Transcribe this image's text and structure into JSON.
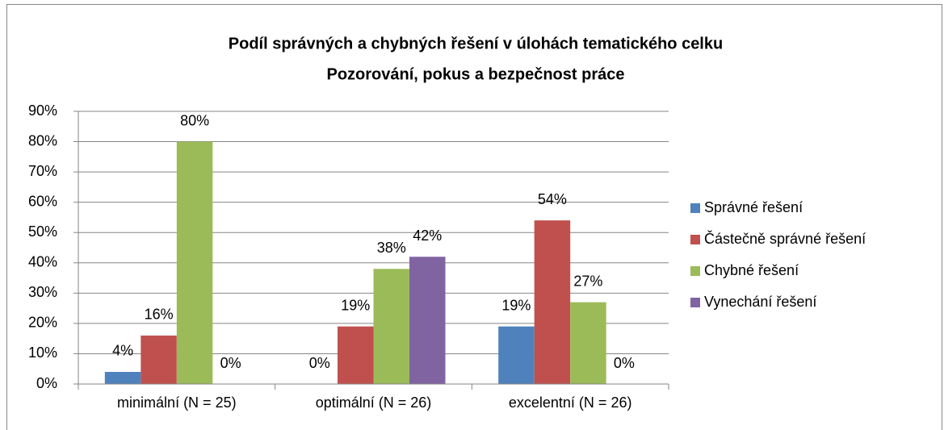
{
  "chart_data": {
    "type": "bar",
    "title": [
      "Podíl správných a chybných řešení v úlohách tematického celku",
      "Pozorování, pokus a bezpečnost práce"
    ],
    "categories": [
      "minimální (N = 25)",
      "optimální (N = 26)",
      "excelentní (N = 26)"
    ],
    "series": [
      {
        "name": "Správné řešení",
        "color": "#4f81bd",
        "values": [
          4,
          0,
          19
        ],
        "value_labels": [
          "4%",
          "0%",
          "19%"
        ]
      },
      {
        "name": "Částečně správné řešení",
        "color": "#c0504d",
        "values": [
          16,
          19,
          54
        ],
        "value_labels": [
          "16%",
          "19%",
          "54%"
        ]
      },
      {
        "name": "Chybné řešení",
        "color": "#9bbb59",
        "values": [
          80,
          38,
          27
        ],
        "value_labels": [
          "80%",
          "38%",
          "27%"
        ]
      },
      {
        "name": "Vynechání řešení",
        "color": "#8064a2",
        "values": [
          0,
          42,
          0
        ],
        "value_labels": [
          "0%",
          "42%",
          "0%"
        ]
      }
    ],
    "ylim": [
      0,
      90
    ],
    "yticks": [
      {
        "value": 0,
        "label": "0%"
      },
      {
        "value": 10,
        "label": "10%"
      },
      {
        "value": 20,
        "label": "20%"
      },
      {
        "value": 30,
        "label": "30%"
      },
      {
        "value": 40,
        "label": "40%"
      },
      {
        "value": 50,
        "label": "50%"
      },
      {
        "value": 60,
        "label": "60%"
      },
      {
        "value": 70,
        "label": "70%"
      },
      {
        "value": 80,
        "label": "80%"
      },
      {
        "value": 90,
        "label": "90%"
      }
    ],
    "grid": true,
    "legend": "right"
  }
}
